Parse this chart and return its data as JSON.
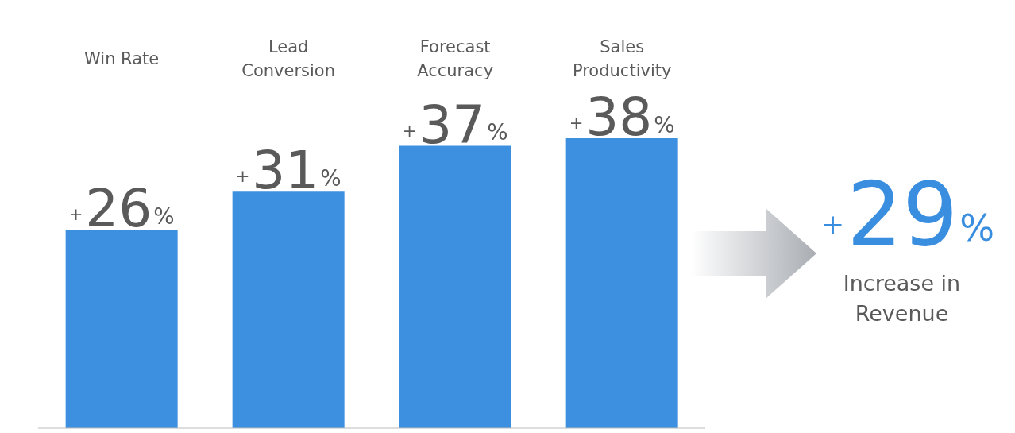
{
  "chart_data": {
    "type": "bar",
    "categories": [
      "Win Rate",
      "Lead Conversion",
      "Forecast Accuracy",
      "Sales Productivity"
    ],
    "values": [
      26,
      31,
      37,
      38
    ],
    "value_labels": [
      "+26%",
      "+31%",
      "+37%",
      "+38%"
    ],
    "color": "#3d8fe0",
    "annotations": [
      "+29%",
      "Increase in Revenue"
    ]
  }
}
